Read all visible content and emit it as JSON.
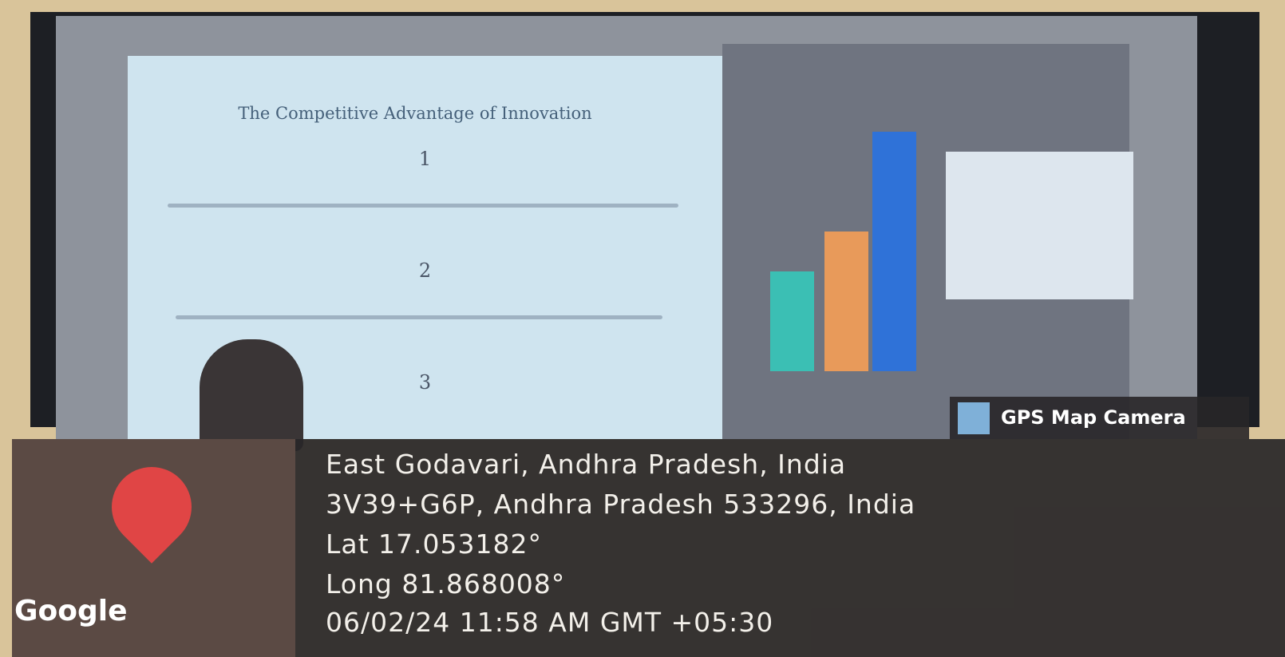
{
  "slide": {
    "title": "The Competitive Advantage of Innovation",
    "points": [
      "1",
      "2",
      "3"
    ]
  },
  "overlay": {
    "badge": "GPS Map Camera",
    "map_label": "Google",
    "lines": [
      "East Godavari, Andhra Pradesh, India",
      "3V39+G6P, Andhra Pradesh 533296, India",
      "Lat 17.053182°",
      "Long 81.868008°",
      "06/02/24 11:58 AM GMT +05:30"
    ]
  }
}
